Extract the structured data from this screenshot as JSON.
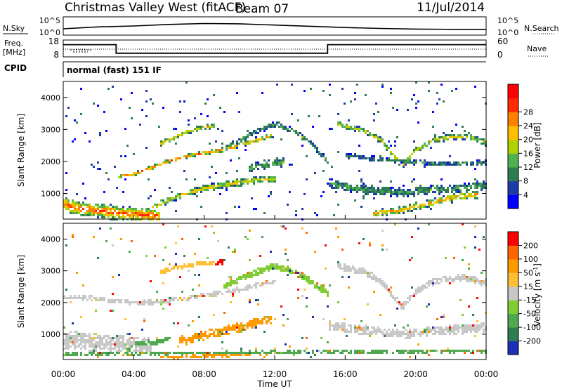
{
  "header": {
    "title": "Christmas Valley West (fitACF)",
    "beam": "Beam 07",
    "date": "11/Jul/2014"
  },
  "status_panels": {
    "nsky_label": "N.Sky",
    "nsky_ticks": [
      "10^5",
      "10^0"
    ],
    "nsky_right_ticks": [
      "10^5",
      "10^0"
    ],
    "nsearch_label": "N.Search",
    "freq_label_1": "Freq.",
    "freq_label_2": "[MHz]",
    "freq_ticks": [
      "18",
      "8"
    ],
    "nave_label": "Nave",
    "nave_ticks": [
      "60",
      "0"
    ],
    "cpid_label": "CPID",
    "cpid_text": "normal (fast) 151 IF"
  },
  "chart_data": [
    {
      "type": "heatmap",
      "name": "power",
      "ylabel": "Slant Range [km]",
      "y_ticks": [
        "1000",
        "2000",
        "3000",
        "4000"
      ],
      "ylim": [
        200,
        4500
      ],
      "colorbar_label": "Power [dB]",
      "colorbar_ticks": [
        "4",
        "8",
        "12",
        "16",
        "20",
        "24",
        "28"
      ],
      "colorbar_colors": [
        "#0000ff",
        "#1e3ca8",
        "#2e7d52",
        "#4fb14f",
        "#b3d000",
        "#ffbe00",
        "#ff8000",
        "#ff2a00",
        "#ff0000"
      ],
      "echo_bands": [
        {
          "t": [
            0.0,
            0.5,
            1.0,
            2.0,
            3.0,
            4.0,
            5.0,
            5.5
          ],
          "r": [
            700,
            600,
            550,
            500,
            430,
            380,
            330,
            300
          ],
          "w": 230,
          "level": 0.85
        },
        {
          "t": [
            5.0,
            6.0,
            7.0,
            8.0,
            9.0,
            10.0,
            11.0,
            12.0
          ],
          "r": [
            600,
            850,
            1050,
            1200,
            1300,
            1380,
            1450,
            1500
          ],
          "w": 110,
          "level": 0.6
        },
        {
          "t": [
            3.0,
            4.0,
            5.0,
            6.0,
            7.0,
            8.0,
            9.0,
            10.0,
            11.0,
            11.8
          ],
          "r": [
            1550,
            1650,
            1850,
            2050,
            2200,
            2300,
            2400,
            2550,
            2700,
            2850
          ],
          "w": 70,
          "level": 0.75
        },
        {
          "t": [
            5.5,
            6.5,
            7.5,
            8.5
          ],
          "r": [
            2600,
            2850,
            3050,
            3150
          ],
          "w": 80,
          "level": 0.6
        },
        {
          "t": [
            9.0,
            10.0,
            11.0,
            12.0,
            13.0,
            14.0,
            15.0
          ],
          "r": [
            2400,
            2700,
            3000,
            3200,
            3000,
            2600,
            2000
          ],
          "w": 90,
          "level": 0.35
        },
        {
          "t": [
            15.5,
            17.0,
            18.0,
            18.7,
            19.2,
            20.0,
            21.0,
            22.0,
            23.0,
            24.0
          ],
          "r": [
            3200,
            3000,
            2700,
            2200,
            1900,
            2400,
            2700,
            2800,
            2800,
            2600
          ],
          "w": 100,
          "level": 0.55
        },
        {
          "t": [
            15.0,
            16.5,
            18.0,
            19.5,
            21.0,
            22.5,
            24.0
          ],
          "r": [
            1350,
            1200,
            1100,
            1050,
            1150,
            1200,
            1300
          ],
          "w": 150,
          "level": 0.35
        },
        {
          "t": [
            16.0,
            18.0,
            20.0,
            22.0,
            24.0
          ],
          "r": [
            2200,
            2100,
            2000,
            1950,
            2000
          ],
          "w": 80,
          "level": 0.3
        },
        {
          "t": [
            17.5,
            19.0,
            20.5,
            22.0,
            23.5
          ],
          "r": [
            400,
            500,
            700,
            900,
            1000
          ],
          "w": 120,
          "level": 0.7
        },
        {
          "t": [
            10.5,
            11.5,
            12.5
          ],
          "r": [
            1800,
            1950,
            2000
          ],
          "w": 150,
          "level": 0.35
        }
      ]
    },
    {
      "type": "heatmap",
      "name": "velocity",
      "ylabel": "Slant Range [km]",
      "y_ticks": [
        "1000",
        "2000",
        "3000",
        "4000"
      ],
      "ylim": [
        200,
        4500
      ],
      "colorbar_label": "Velocity [m s^-1]",
      "colorbar_ticks": [
        "200",
        "100",
        "50",
        "15",
        "-15",
        "-50",
        "-100",
        "-200"
      ],
      "colorbar_colors": [
        "#1a2fb3",
        "#2e7d52",
        "#4fa84f",
        "#7fcc33",
        "#c8c8c8",
        "#ffbe33",
        "#ff9900",
        "#ff6600",
        "#ff0000"
      ],
      "x_ticks": [
        "00:00",
        "04:00",
        "08:00",
        "12:00",
        "16:00",
        "20:00",
        "00:00"
      ],
      "xlabel": "Time UT",
      "echo_bands": [
        {
          "t": [
            0.0,
            1.0,
            2.0,
            3.0,
            4.0,
            5.0
          ],
          "r": [
            850,
            800,
            750,
            700,
            650,
            600
          ],
          "w": 300,
          "cls": 4
        },
        {
          "t": [
            0.0,
            2.0,
            4.0,
            6.0,
            8.0,
            10.0,
            12.0
          ],
          "r": [
            2200,
            2150,
            2000,
            2100,
            2250,
            2450,
            2700
          ],
          "w": 80,
          "cls": 4
        },
        {
          "t": [
            5.5,
            6.5,
            7.5,
            8.5
          ],
          "r": [
            3000,
            3150,
            3250,
            3300
          ],
          "w": 70,
          "cls": 5
        },
        {
          "t": [
            8.6,
            9.2
          ],
          "r": [
            3250,
            3350
          ],
          "w": 90,
          "cls": 8
        },
        {
          "t": [
            6.5,
            8.0,
            9.5,
            11.0,
            11.8
          ],
          "r": [
            800,
            1000,
            1200,
            1400,
            1500
          ],
          "w": 150,
          "cls": 6
        },
        {
          "t": [
            9.0,
            10.0,
            11.0,
            12.0,
            13.0,
            14.0,
            15.0
          ],
          "r": [
            2500,
            2800,
            3000,
            3200,
            3000,
            2700,
            2300
          ],
          "w": 110,
          "cls": 3
        },
        {
          "t": [
            15.5,
            17.0,
            18.0,
            18.7,
            19.2,
            20.0,
            21.0,
            22.0,
            23.0,
            24.0
          ],
          "r": [
            3200,
            3000,
            2700,
            2200,
            1900,
            2400,
            2700,
            2800,
            2800,
            2600
          ],
          "w": 110,
          "cls": 4
        },
        {
          "t": [
            15.0,
            16.5,
            18.0,
            19.5,
            21.0,
            22.5,
            24.0
          ],
          "r": [
            1300,
            1200,
            1100,
            1050,
            1150,
            1200,
            1250
          ],
          "w": 150,
          "cls": 4
        },
        {
          "t": [
            5.5,
            7.0,
            8.5,
            10.0,
            11.5
          ],
          "r": [
            300,
            320,
            350,
            380,
            400
          ],
          "w": 70,
          "cls": 6
        },
        {
          "t": [
            3.5,
            5.0,
            6.0
          ],
          "r": [
            600,
            750,
            900
          ],
          "w": 120,
          "cls": 2
        },
        {
          "t": [
            0.0,
            3.0,
            6.0,
            9.0,
            12.0,
            15.0,
            18.0,
            21.0,
            24.0
          ],
          "r": [
            400,
            420,
            430,
            450,
            460,
            470,
            480,
            500,
            500
          ],
          "w": 60,
          "cls": 2
        }
      ]
    }
  ],
  "lines": {
    "freq": {
      "t": [
        0.0,
        3.0,
        3.0,
        15.0,
        15.0,
        24.0
      ],
      "mhz": [
        15.8,
        15.8,
        10.0,
        10.0,
        15.8,
        15.8
      ]
    },
    "nsky": {
      "t": [
        0.0,
        2.0,
        4.0,
        6.0,
        8.0,
        10.0,
        12.0,
        14.0,
        16.0,
        18.0,
        20.0,
        22.0,
        24.0
      ],
      "log": [
        1.6,
        2.2,
        2.5,
        3.0,
        3.3,
        3.2,
        2.8,
        2.4,
        2.0,
        1.7,
        1.5,
        1.4,
        1.4
      ]
    },
    "nave": {
      "t": [
        0.0,
        24.0
      ],
      "value": [
        18,
        18
      ]
    }
  }
}
